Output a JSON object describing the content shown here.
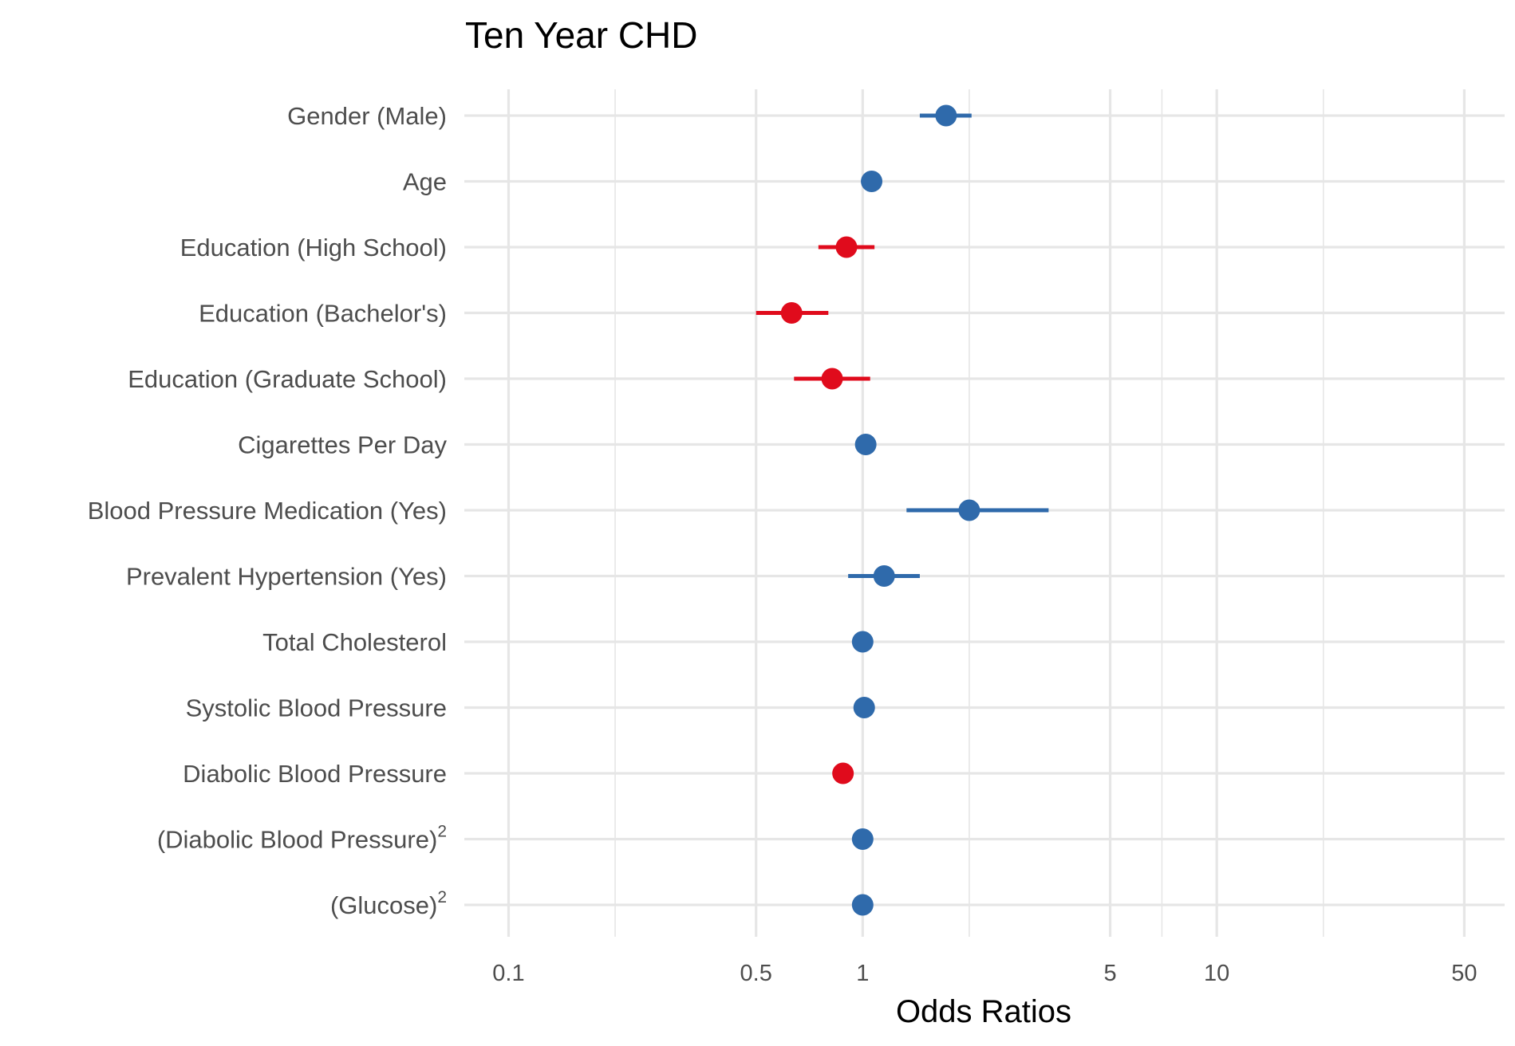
{
  "chart_data": {
    "type": "scatter",
    "title": "Ten Year CHD",
    "xlabel": "Odds Ratios",
    "ylabel": "",
    "x_scale": "log10",
    "xlim": [
      0.075,
      65
    ],
    "x_ticks": [
      {
        "value": 0.1,
        "label": "0.1"
      },
      {
        "value": 0.5,
        "label": "0.5"
      },
      {
        "value": 1,
        "label": "1"
      },
      {
        "value": 5,
        "label": "5"
      },
      {
        "value": 10,
        "label": "10"
      },
      {
        "value": 50,
        "label": "50"
      }
    ],
    "x_minor_gridlines": [
      0.2,
      2,
      7,
      20
    ],
    "grid": true,
    "legend": "none",
    "colors": {
      "above_one": "#2f6aab",
      "below_one": "#e00b1c",
      "grid": "#e6e6e6"
    },
    "rows": [
      {
        "label": "Gender (Male)",
        "superscript": "",
        "estimate": 1.72,
        "lower": 1.45,
        "upper": 2.03,
        "direction": "above_one"
      },
      {
        "label": "Age",
        "superscript": "",
        "estimate": 1.06,
        "lower": 1.05,
        "upper": 1.08,
        "direction": "above_one"
      },
      {
        "label": "Education (High School)",
        "superscript": "",
        "estimate": 0.9,
        "lower": 0.75,
        "upper": 1.08,
        "direction": "below_one"
      },
      {
        "label": "Education (Bachelor's)",
        "superscript": "",
        "estimate": 0.63,
        "lower": 0.5,
        "upper": 0.8,
        "direction": "below_one"
      },
      {
        "label": "Education (Graduate School)",
        "superscript": "",
        "estimate": 0.82,
        "lower": 0.64,
        "upper": 1.05,
        "direction": "below_one"
      },
      {
        "label": "Cigarettes Per Day",
        "superscript": "",
        "estimate": 1.02,
        "lower": 1.01,
        "upper": 1.03,
        "direction": "above_one"
      },
      {
        "label": "Blood Pressure Medication (Yes)",
        "superscript": "",
        "estimate": 2.0,
        "lower": 1.33,
        "upper": 3.35,
        "direction": "above_one"
      },
      {
        "label": "Prevalent Hypertension (Yes)",
        "superscript": "",
        "estimate": 1.15,
        "lower": 0.91,
        "upper": 1.45,
        "direction": "above_one"
      },
      {
        "label": "Total Cholesterol",
        "superscript": "",
        "estimate": 1.0,
        "lower": 1.0,
        "upper": 1.0,
        "direction": "above_one"
      },
      {
        "label": "Systolic Blood Pressure",
        "superscript": "",
        "estimate": 1.01,
        "lower": 1.01,
        "upper": 1.02,
        "direction": "above_one"
      },
      {
        "label": "Diabolic Blood Pressure",
        "superscript": "",
        "estimate": 0.88,
        "lower": 0.86,
        "upper": 0.9,
        "direction": "below_one"
      },
      {
        "label": "(Diabolic Blood Pressure)",
        "superscript": "2",
        "estimate": 1.0,
        "lower": 1.0,
        "upper": 1.0,
        "direction": "above_one"
      },
      {
        "label": "(Glucose)",
        "superscript": "2",
        "estimate": 1.0,
        "lower": 1.0,
        "upper": 1.0,
        "direction": "above_one"
      }
    ]
  }
}
